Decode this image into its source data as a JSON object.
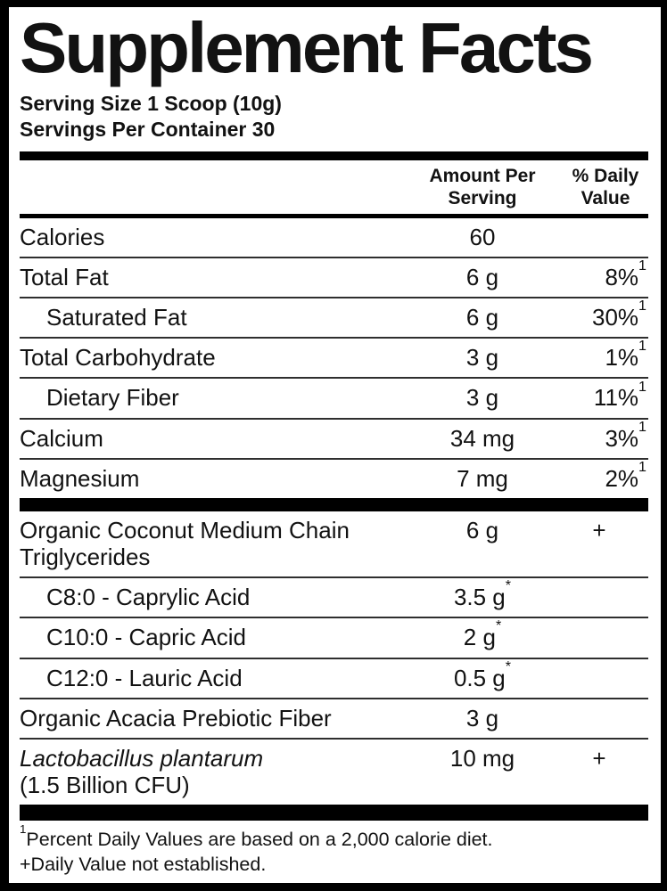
{
  "title": "Supplement Facts",
  "serving": {
    "size": "Serving Size 1 Scoop (10g)",
    "per_container": "Servings Per Container 30"
  },
  "header": {
    "amount_line1": "Amount Per",
    "amount_line2": "Serving",
    "dv_line1": "% Daily",
    "dv_line2": "Value"
  },
  "table": {
    "sections": [
      {
        "rows": [
          {
            "name_parts": [
              {
                "t": "Calories"
              }
            ],
            "amount": "60"
          },
          {
            "name_parts": [
              {
                "t": "Total Fat"
              }
            ],
            "amount": "6 g",
            "dv": "8%",
            "dv_sup": "1"
          },
          {
            "name_parts": [
              {
                "t": "Saturated Fat"
              }
            ],
            "indent": true,
            "amount": "6 g",
            "dv": "30%",
            "dv_sup": "1"
          },
          {
            "name_parts": [
              {
                "t": "Total Carbohydrate"
              }
            ],
            "amount": "3 g",
            "dv": "1%",
            "dv_sup": "1"
          },
          {
            "name_parts": [
              {
                "t": "Dietary Fiber"
              }
            ],
            "indent": true,
            "amount": "3 g",
            "dv": "11%",
            "dv_sup": "1"
          },
          {
            "name_parts": [
              {
                "t": "Calcium"
              }
            ],
            "amount": "34 mg",
            "dv": "3%",
            "dv_sup": "1"
          },
          {
            "name_parts": [
              {
                "t": "Magnesium"
              }
            ],
            "amount": "7 mg",
            "dv": "2%",
            "dv_sup": "1"
          }
        ]
      },
      {
        "rows": [
          {
            "name_parts": [
              {
                "t": "Organic Coconut Medium Chain Triglycerides"
              }
            ],
            "amount": "6 g",
            "dv": "+"
          },
          {
            "name_parts": [
              {
                "t": "C8:0 - Caprylic Acid"
              }
            ],
            "indent": true,
            "amount": "3.5 g",
            "amount_sup": "*"
          },
          {
            "name_parts": [
              {
                "t": "C10:0 - Capric Acid"
              }
            ],
            "indent": true,
            "amount": "2 g",
            "amount_sup": "*"
          },
          {
            "name_parts": [
              {
                "t": "C12:0 - Lauric Acid"
              }
            ],
            "indent": true,
            "amount": "0.5 g",
            "amount_sup": "*"
          },
          {
            "name_parts": [
              {
                "t": "Organic Acacia Prebiotic Fiber"
              }
            ],
            "amount": "3 g"
          },
          {
            "name_parts": [
              {
                "t": "Lactobacillus plantarum",
                "i": true
              },
              {
                "t": "(1.5 Billion CFU)",
                "br": true
              }
            ],
            "amount": "10 mg",
            "dv": "+"
          }
        ]
      }
    ]
  },
  "footnotes": [
    {
      "sup": "1",
      "text": "Percent Daily Values are based on a 2,000 calorie diet."
    },
    {
      "sup": "",
      "text": "+Daily Value not established."
    }
  ],
  "colors": {
    "text": "#121212",
    "background": "#ffffff",
    "border": "#000000",
    "separator_line": "#2f2f2f"
  }
}
